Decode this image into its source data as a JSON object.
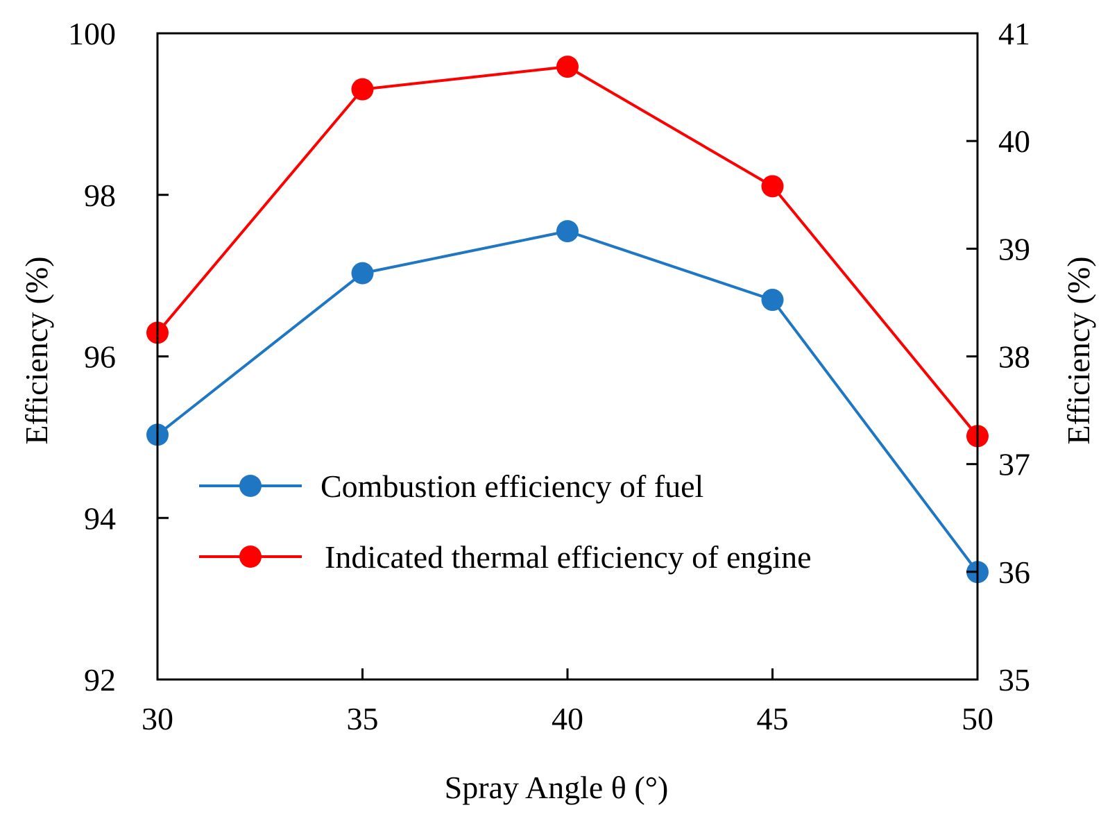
{
  "chart_data": {
    "type": "line",
    "title": "",
    "xlabel": "Spray Angle θ  (°)",
    "ylabel_left": "Efficiency  (%)",
    "ylabel_right": "Efficiency  (%)",
    "x": [
      30,
      35,
      40,
      45,
      50
    ],
    "xlim": [
      30,
      50
    ],
    "xticks": [
      "30",
      "35",
      "40",
      "45",
      "50"
    ],
    "ylim_left": [
      92,
      100
    ],
    "yticks_left": [
      "92",
      "94",
      "96",
      "98",
      "100"
    ],
    "ylim_right": [
      35,
      41
    ],
    "yticks_right": [
      "35",
      "36",
      "37",
      "38",
      "39",
      "40",
      "41"
    ],
    "grid": false,
    "legend_position": "center-left",
    "series": [
      {
        "name": "Combustion efficiency of fuel",
        "axis": "left",
        "color": "#1f77c4",
        "values": [
          95.03,
          97.03,
          97.55,
          96.7,
          93.33
        ]
      },
      {
        "name": "Indicated thermal efficiency of engine",
        "axis": "right",
        "color": "#ff0000",
        "values": [
          38.22,
          40.48,
          40.69,
          39.58,
          37.26
        ]
      }
    ]
  }
}
